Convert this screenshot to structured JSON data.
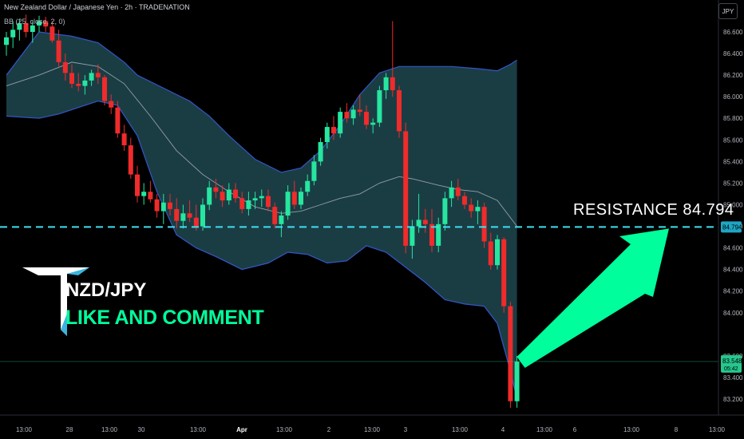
{
  "header": {
    "title": "New Zealand Dollar / Japanese Yen · 2h · TRADENATION",
    "indicator": "BB (25, close, 2, 0)",
    "currency_button": "JPY"
  },
  "overlay": {
    "pair": "NZD/JPY",
    "cta": "LIKE AND COMMENT",
    "resistance_text": "RESISTANCE   84.794"
  },
  "colors": {
    "background": "#000000",
    "up": "#26e6a0",
    "down": "#ef2b2b",
    "band_fill": "#1e4850",
    "band_line": "#3456c8",
    "basis_line": "#b2b5be",
    "resistance_line": "#3ee0f0",
    "arrow": "#00ff9c",
    "current_price_tag": "#26c78e"
  },
  "chart_data": {
    "type": "candlestick",
    "title": "New Zealand Dollar / Japanese Yen · 2h · TRADENATION",
    "indicator": "Bollinger Bands (25, close, 2, 0)",
    "ylim": [
      83.08,
      86.78
    ],
    "y_ticks": [
      "86.600",
      "86.400",
      "86.200",
      "86.000",
      "85.800",
      "85.600",
      "85.400",
      "85.200",
      "85.000",
      "84.800",
      "84.600",
      "84.400",
      "84.200",
      "84.000",
      "83.600",
      "83.400",
      "83.200"
    ],
    "x_ticks": [
      "13:00",
      "28",
      "13:00",
      "30",
      "13:00",
      "Apr",
      "13:00",
      "2",
      "13:00",
      "3",
      "13:00",
      "4",
      "13:00",
      "6",
      "13:00",
      "8",
      "13:00"
    ],
    "resistance": {
      "label": "RESISTANCE",
      "value": 84.794,
      "tag": "84.794"
    },
    "last_price": {
      "value": 83.548,
      "tag": "83.548",
      "countdown": "05:42"
    },
    "candles": [
      [
        86.48,
        86.6,
        86.38,
        86.55
      ],
      [
        86.55,
        86.7,
        86.45,
        86.62
      ],
      [
        86.62,
        86.72,
        86.52,
        86.68
      ],
      [
        86.68,
        86.76,
        86.55,
        86.6
      ],
      [
        86.6,
        86.7,
        86.5,
        86.66
      ],
      [
        86.66,
        86.75,
        86.6,
        86.7
      ],
      [
        86.7,
        86.74,
        86.6,
        86.65
      ],
      [
        86.65,
        86.7,
        86.5,
        86.52
      ],
      [
        86.52,
        86.62,
        86.28,
        86.32
      ],
      [
        86.32,
        86.4,
        86.15,
        86.22
      ],
      [
        86.22,
        86.3,
        86.08,
        86.12
      ],
      [
        86.12,
        86.22,
        86.05,
        86.1
      ],
      [
        86.1,
        86.2,
        86.02,
        86.15
      ],
      [
        86.15,
        86.25,
        86.1,
        86.22
      ],
      [
        86.22,
        86.3,
        86.12,
        86.18
      ],
      [
        86.18,
        86.2,
        85.92,
        85.96
      ],
      [
        85.96,
        86.02,
        85.84,
        85.9
      ],
      [
        85.9,
        85.96,
        85.62,
        85.66
      ],
      [
        85.66,
        85.74,
        85.5,
        85.55
      ],
      [
        85.55,
        85.62,
        85.24,
        85.28
      ],
      [
        85.28,
        85.36,
        85.02,
        85.08
      ],
      [
        85.08,
        85.2,
        85.0,
        85.12
      ],
      [
        85.12,
        85.22,
        85.02,
        85.05
      ],
      [
        85.05,
        85.1,
        84.88,
        84.94
      ],
      [
        84.94,
        85.1,
        84.82,
        85.02
      ],
      [
        85.02,
        85.1,
        84.9,
        84.96
      ],
      [
        84.96,
        85.06,
        84.78,
        84.85
      ],
      [
        84.85,
        85.0,
        84.78,
        84.92
      ],
      [
        84.92,
        85.04,
        84.84,
        84.88
      ],
      [
        84.88,
        85.0,
        84.76,
        84.8
      ],
      [
        84.8,
        85.06,
        84.76,
        85.0
      ],
      [
        85.0,
        85.22,
        84.95,
        85.16
      ],
      [
        85.16,
        85.24,
        85.06,
        85.12
      ],
      [
        85.12,
        85.18,
        84.98,
        85.04
      ],
      [
        85.04,
        85.2,
        85.0,
        85.14
      ],
      [
        85.14,
        85.2,
        85.02,
        85.06
      ],
      [
        85.06,
        85.12,
        84.92,
        84.96
      ],
      [
        84.96,
        85.12,
        84.9,
        85.04
      ],
      [
        85.04,
        85.12,
        84.96,
        85.06
      ],
      [
        85.06,
        85.14,
        84.98,
        85.08
      ],
      [
        85.08,
        85.14,
        84.94,
        84.98
      ],
      [
        84.98,
        85.02,
        84.78,
        84.82
      ],
      [
        84.82,
        84.94,
        84.7,
        84.9
      ],
      [
        84.9,
        85.18,
        84.86,
        85.12
      ],
      [
        85.12,
        85.22,
        84.96,
        85.0
      ],
      [
        85.0,
        85.16,
        84.96,
        85.12
      ],
      [
        85.12,
        85.28,
        85.08,
        85.22
      ],
      [
        85.22,
        85.46,
        85.18,
        85.4
      ],
      [
        85.4,
        85.62,
        85.36,
        85.58
      ],
      [
        85.58,
        85.76,
        85.52,
        85.72
      ],
      [
        85.72,
        85.82,
        85.6,
        85.66
      ],
      [
        85.66,
        85.9,
        85.62,
        85.86
      ],
      [
        85.86,
        85.94,
        85.76,
        85.8
      ],
      [
        85.8,
        85.92,
        85.74,
        85.88
      ],
      [
        85.88,
        86.02,
        85.82,
        85.86
      ],
      [
        85.86,
        85.92,
        85.7,
        85.74
      ],
      [
        85.74,
        85.8,
        85.66,
        85.76
      ],
      [
        85.76,
        86.1,
        85.72,
        86.06
      ],
      [
        86.06,
        86.22,
        85.98,
        86.18
      ],
      [
        86.18,
        86.7,
        86.0,
        86.06
      ],
      [
        86.06,
        86.1,
        85.62,
        85.68
      ],
      [
        85.68,
        85.76,
        84.55,
        84.62
      ],
      [
        84.62,
        84.86,
        84.5,
        84.8
      ],
      [
        84.8,
        85.1,
        84.74,
        84.86
      ],
      [
        84.86,
        84.96,
        84.74,
        84.82
      ],
      [
        84.82,
        84.96,
        84.56,
        84.62
      ],
      [
        84.62,
        84.88,
        84.56,
        84.82
      ],
      [
        84.82,
        85.12,
        84.76,
        85.06
      ],
      [
        85.06,
        85.22,
        84.98,
        85.16
      ],
      [
        85.16,
        85.24,
        85.04,
        85.08
      ],
      [
        85.08,
        85.12,
        84.96,
        85.0
      ],
      [
        85.0,
        85.06,
        84.88,
        84.94
      ],
      [
        84.94,
        85.04,
        84.82,
        84.98
      ],
      [
        84.98,
        85.02,
        84.6,
        84.66
      ],
      [
        84.66,
        84.74,
        84.4,
        84.44
      ],
      [
        84.44,
        84.72,
        84.4,
        84.68
      ],
      [
        84.68,
        84.7,
        84.0,
        84.06
      ],
      [
        84.06,
        84.1,
        83.12,
        83.18
      ],
      [
        83.18,
        83.6,
        83.12,
        83.548
      ]
    ],
    "bb_upper": [
      [
        0,
        86.2
      ],
      [
        5,
        86.6
      ],
      [
        10,
        86.56
      ],
      [
        14,
        86.5
      ],
      [
        18,
        86.32
      ],
      [
        20,
        86.2
      ],
      [
        24,
        86.08
      ],
      [
        28,
        85.96
      ],
      [
        31,
        85.82
      ],
      [
        34,
        85.64
      ],
      [
        38,
        85.42
      ],
      [
        42,
        85.3
      ],
      [
        45,
        85.34
      ],
      [
        48,
        85.5
      ],
      [
        51,
        85.74
      ],
      [
        54,
        86.02
      ],
      [
        57,
        86.22
      ],
      [
        60,
        86.28
      ],
      [
        64,
        86.28
      ],
      [
        68,
        86.28
      ],
      [
        72,
        86.26
      ],
      [
        75,
        86.24
      ],
      [
        77,
        86.3
      ],
      [
        78,
        86.34
      ]
    ],
    "bb_basis": [
      [
        0,
        86.1
      ],
      [
        5,
        86.2
      ],
      [
        10,
        86.32
      ],
      [
        14,
        86.28
      ],
      [
        18,
        86.12
      ],
      [
        22,
        85.82
      ],
      [
        26,
        85.5
      ],
      [
        30,
        85.28
      ],
      [
        34,
        85.12
      ],
      [
        38,
        84.98
      ],
      [
        42,
        84.92
      ],
      [
        45,
        84.94
      ],
      [
        48,
        85.0
      ],
      [
        51,
        85.06
      ],
      [
        54,
        85.1
      ],
      [
        57,
        85.2
      ],
      [
        60,
        85.26
      ],
      [
        62,
        85.24
      ],
      [
        66,
        85.18
      ],
      [
        69,
        85.14
      ],
      [
        72,
        85.12
      ],
      [
        75,
        85.04
      ],
      [
        78,
        84.8
      ]
    ],
    "bb_lower": [
      [
        0,
        85.82
      ],
      [
        5,
        85.8
      ],
      [
        8,
        85.84
      ],
      [
        11,
        85.9
      ],
      [
        14,
        85.96
      ],
      [
        17,
        85.92
      ],
      [
        20,
        85.64
      ],
      [
        23,
        85.12
      ],
      [
        26,
        84.72
      ],
      [
        29,
        84.6
      ],
      [
        32,
        84.52
      ],
      [
        36,
        84.4
      ],
      [
        40,
        84.46
      ],
      [
        43,
        84.56
      ],
      [
        46,
        84.54
      ],
      [
        49,
        84.46
      ],
      [
        52,
        84.48
      ],
      [
        55,
        84.62
      ],
      [
        58,
        84.56
      ],
      [
        61,
        84.42
      ],
      [
        64,
        84.28
      ],
      [
        67,
        84.12
      ],
      [
        70,
        84.08
      ],
      [
        73,
        84.06
      ],
      [
        75,
        83.9
      ],
      [
        77,
        83.46
      ],
      [
        78,
        83.2
      ]
    ]
  }
}
